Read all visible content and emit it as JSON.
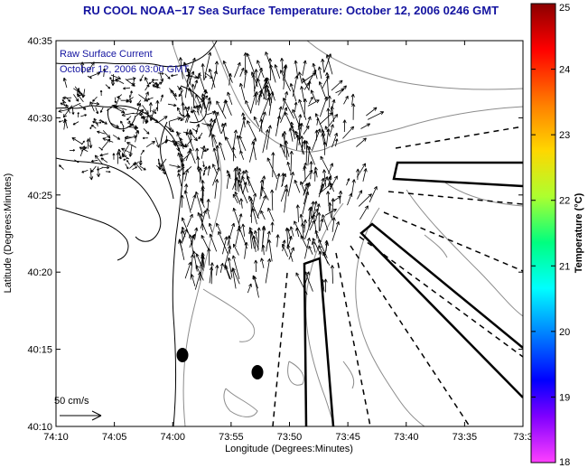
{
  "title": "RU COOL  NOAA−17  Sea Surface Temperature:  October 12, 2006 0246 GMT",
  "annotations": {
    "line1": "Raw Surface Current",
    "line2": "October 12, 2006 03:00 GMT",
    "scale_label": "50 cm/s"
  },
  "axes": {
    "xlabel": "Longitude (Degrees:Minutes)",
    "ylabel": "Latitude (Degrees:Minutes)",
    "x_ticks": [
      "74:10",
      "74:05",
      "74:00",
      "73:55",
      "73:50",
      "73:45",
      "73:40",
      "73:35",
      "73:3"
    ],
    "y_ticks": [
      "40:35",
      "40:30",
      "40:25",
      "40:20",
      "40:15",
      "40:10"
    ]
  },
  "colorbar": {
    "label": "Temperature (°C)",
    "ticks": [
      "25",
      "24",
      "23",
      "22",
      "21",
      "20",
      "19",
      "18"
    ],
    "min": 18,
    "max": 25
  },
  "colors": {
    "title": "#1414a0",
    "annotation": "#1414a0",
    "land_line": "#000000",
    "bathymetry": "#8c8c8c"
  },
  "map": {
    "lon_range": [
      "74:10",
      "73:30"
    ],
    "lat_range": [
      "40:10",
      "40:35"
    ],
    "features": [
      "coastline",
      "bathymetry-contours",
      "surface-current-vectors",
      "shipping-lanes",
      "buoys"
    ]
  }
}
